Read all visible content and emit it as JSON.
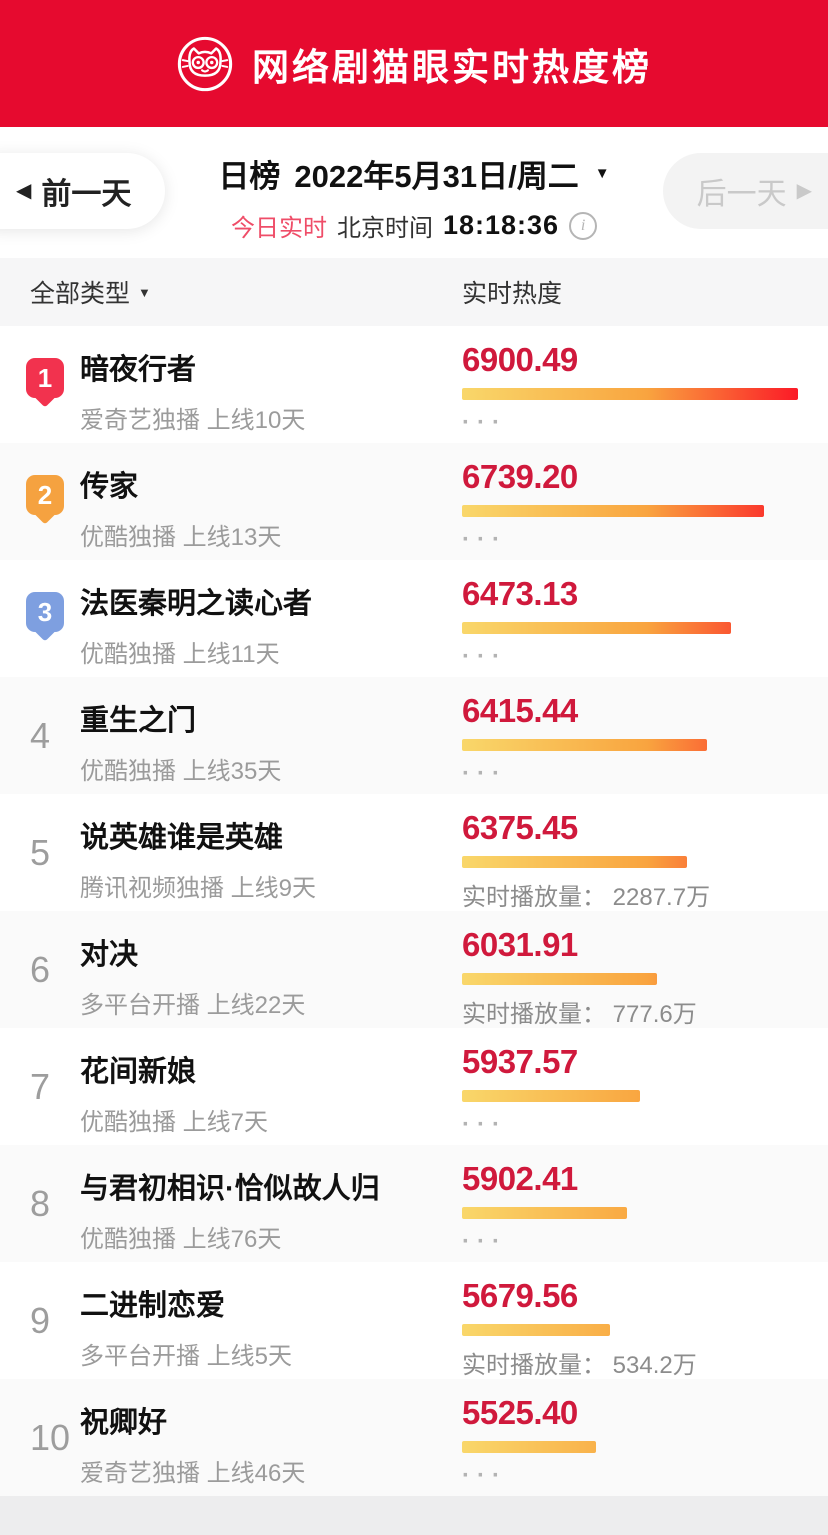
{
  "header": {
    "title": "网络剧猫眼实时热度榜"
  },
  "datebar": {
    "prev_label": "前一天",
    "next_label": "后一天",
    "rank_type": "日榜",
    "date": "2022年5月31日/周二",
    "live_label": "今日实时",
    "timezone_label": "北京时间",
    "time": "18:18:36"
  },
  "columns": {
    "type_filter": "全部类型",
    "heat_label": "实时热度"
  },
  "colors": {
    "brand_red": "#e60a2f",
    "score_red": "#d0193c",
    "live_pink": "#ef4d68",
    "rank1_badge": "#f2324e",
    "rank2_badge": "#f5a240",
    "rank3_badge": "#7e9fe0",
    "bar_gradient": [
      "#f9d76a",
      "#f9a43f",
      "#fb1a27"
    ]
  },
  "list": {
    "items": [
      {
        "rank": "1",
        "badge_color": "#f2324e",
        "title": "暗夜行者",
        "meta": "爱奇艺独播 上线10天",
        "score": "6900.49",
        "bar_pct": 100,
        "extra": "···",
        "extra_kind": "dots"
      },
      {
        "rank": "2",
        "badge_color": "#f5a240",
        "title": "传家",
        "meta": "优酷独播 上线13天",
        "score": "6739.20",
        "bar_pct": 90,
        "extra": "···",
        "extra_kind": "dots"
      },
      {
        "rank": "3",
        "badge_color": "#7e9fe0",
        "title": "法医秦明之读心者",
        "meta": "优酷独播 上线11天",
        "score": "6473.13",
        "bar_pct": 80,
        "extra": "···",
        "extra_kind": "dots"
      },
      {
        "rank": "4",
        "badge_color": "",
        "title": "重生之门",
        "meta": "优酷独播 上线35天",
        "score": "6415.44",
        "bar_pct": 73,
        "extra": "···",
        "extra_kind": "dots"
      },
      {
        "rank": "5",
        "badge_color": "",
        "title": "说英雄谁是英雄",
        "meta": "腾讯视频独播 上线9天",
        "score": "6375.45",
        "bar_pct": 67,
        "extra": "实时播放量： 2287.7万",
        "extra_kind": "plays"
      },
      {
        "rank": "6",
        "badge_color": "",
        "title": "对决",
        "meta": "多平台开播 上线22天",
        "score": "6031.91",
        "bar_pct": 58,
        "extra": "实时播放量： 777.6万",
        "extra_kind": "plays"
      },
      {
        "rank": "7",
        "badge_color": "",
        "title": "花间新娘",
        "meta": "优酷独播 上线7天",
        "score": "5937.57",
        "bar_pct": 53,
        "extra": "···",
        "extra_kind": "dots"
      },
      {
        "rank": "8",
        "badge_color": "",
        "title": "与君初相识·恰似故人归",
        "meta": "优酷独播 上线76天",
        "score": "5902.41",
        "bar_pct": 49,
        "extra": "···",
        "extra_kind": "dots"
      },
      {
        "rank": "9",
        "badge_color": "",
        "title": "二进制恋爱",
        "meta": "多平台开播 上线5天",
        "score": "5679.56",
        "bar_pct": 44,
        "extra": "实时播放量： 534.2万",
        "extra_kind": "plays"
      },
      {
        "rank": "10",
        "badge_color": "",
        "title": "祝卿好",
        "meta": "爱奇艺独播 上线46天",
        "score": "5525.40",
        "bar_pct": 40,
        "extra": "···",
        "extra_kind": "dots"
      }
    ]
  }
}
